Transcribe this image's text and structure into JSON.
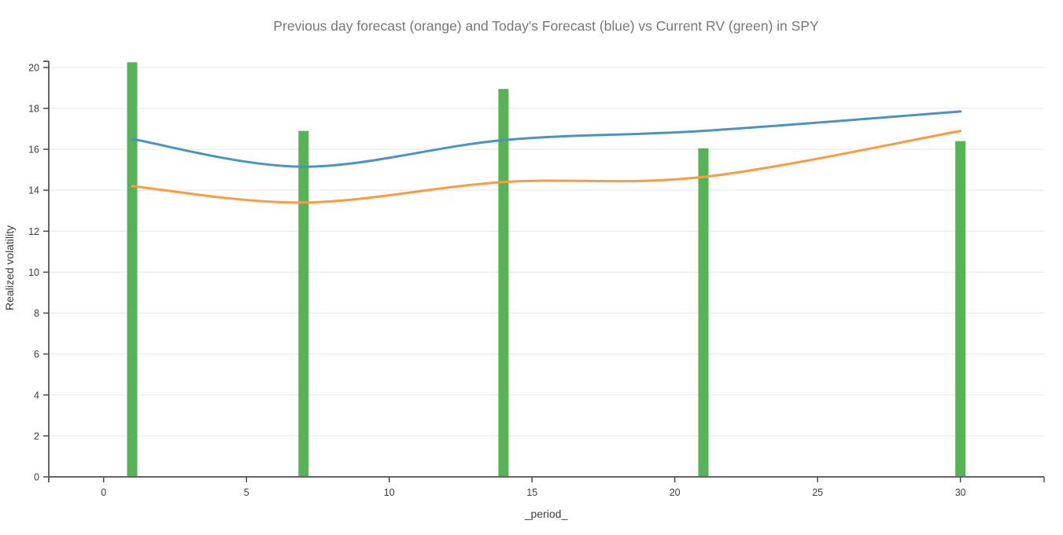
{
  "chart_data": {
    "type": "bar+line",
    "title": "Previous day forecast (orange) and Today's Forecast (blue) vs Current RV (green) in SPY",
    "xlabel": "_period_",
    "ylabel": "Realized volatility",
    "x": [
      1,
      7,
      14,
      21,
      30
    ],
    "series": [
      {
        "name": "Current RV",
        "type": "bar",
        "color": "#56b356",
        "values": [
          20.25,
          16.9,
          18.95,
          16.05,
          16.4
        ]
      },
      {
        "name": "Today's Forecast",
        "type": "line",
        "color": "#4c92c3",
        "values": [
          16.5,
          15.15,
          16.45,
          16.9,
          17.85
        ]
      },
      {
        "name": "Previous day forecast",
        "type": "line",
        "color": "#ff9a3e",
        "values": [
          14.2,
          13.4,
          14.4,
          14.65,
          16.9
        ]
      }
    ],
    "xlim": [
      -1.92,
      32.93
    ],
    "ylim": [
      0,
      20.3
    ],
    "x_ticks": [
      0,
      5,
      10,
      15,
      20,
      25,
      30
    ],
    "y_ticks": [
      0,
      2,
      4,
      6,
      8,
      10,
      12,
      14,
      16,
      18,
      20
    ],
    "grid": "horizontal-only",
    "legend_position": "none",
    "styles": {
      "grid_color": "#e7e7e7",
      "x_axis_color": "#666666",
      "y_axis_color": "#3f3f3f",
      "tick_color": "#4a4a4a",
      "title_color": "#777777",
      "label_color": "#3c3c3c",
      "background": "#ffffff"
    }
  }
}
